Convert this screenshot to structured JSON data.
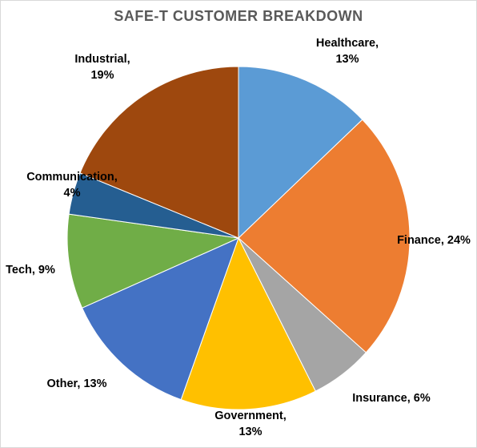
{
  "chart_data": {
    "type": "pie",
    "title": "SAFE-T CUSTOMER BREAKDOWN",
    "categories": [
      "Healthcare",
      "Finance",
      "Insurance",
      "Government",
      "Other",
      "Tech",
      "Communication",
      "Industrial"
    ],
    "values": [
      13,
      24,
      6,
      13,
      13,
      9,
      4,
      19
    ],
    "data_labels": [
      [
        "Healthcare,",
        "13%"
      ],
      [
        "Finance, 24%"
      ],
      [
        "Insurance, 6%"
      ],
      [
        "Government,",
        "13%"
      ],
      [
        "Other, 13%"
      ],
      [
        "Tech, 9%"
      ],
      [
        "Communication,",
        "4%"
      ],
      [
        "Industrial,",
        "19%"
      ]
    ],
    "colors": [
      "#5b9bd5",
      "#ed7d31",
      "#a5a5a5",
      "#ffc000",
      "#4472c4",
      "#70ad47",
      "#255e91",
      "#9e480e"
    ],
    "start_angle": "12 o'clock",
    "direction": "clockwise",
    "legend": "none"
  }
}
